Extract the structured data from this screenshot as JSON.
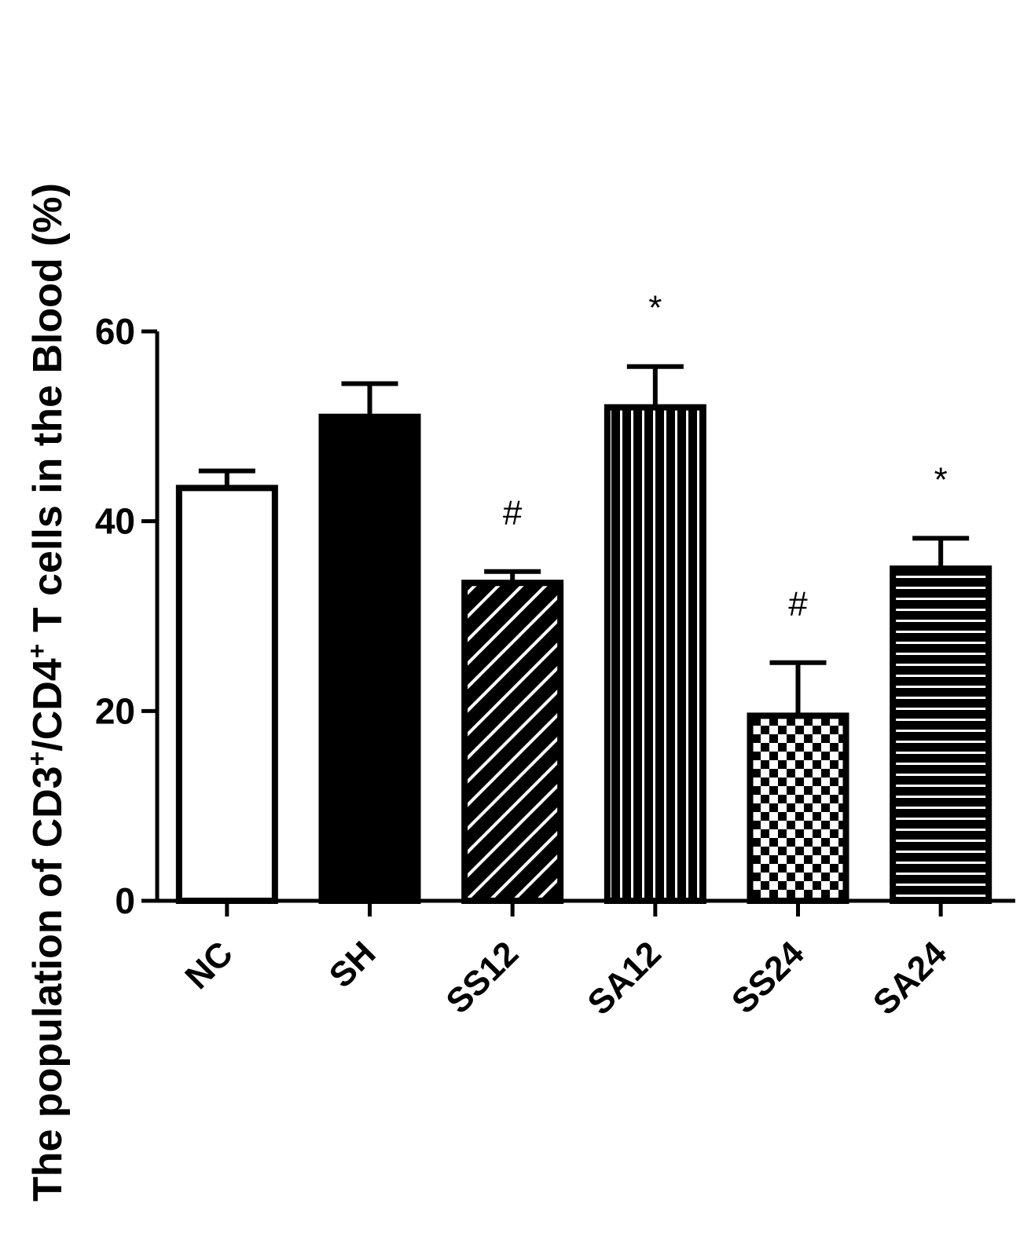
{
  "chart_data": {
    "type": "bar",
    "title": "",
    "xlabel": "",
    "ylabel_parts": [
      "The population of CD3",
      "+",
      "/CD4",
      "+",
      " T cells in the Blood (%)"
    ],
    "categories": [
      "NC",
      "SH",
      "SS12",
      "SA12",
      "SS24",
      "SA24"
    ],
    "values": [
      43.5,
      51,
      33.5,
      52,
      19.5,
      35
    ],
    "errors": [
      1.8,
      3.5,
      1.2,
      4.3,
      5.6,
      3.2
    ],
    "annotations": [
      "",
      "",
      "#",
      "*",
      "#",
      "*"
    ],
    "fills": [
      "white",
      "solid-black",
      "diagonal-stripes",
      "vertical-stripes",
      "checkerboard",
      "horizontal-stripes"
    ],
    "ylim": [
      0,
      60
    ],
    "yticks": [
      0,
      20,
      40,
      60
    ],
    "ytick_labels": [
      "0",
      "20",
      "40",
      "60"
    ],
    "grid": false,
    "legend": "none",
    "colors": {
      "bar_stroke": "#000000",
      "background": "#ffffff"
    }
  }
}
